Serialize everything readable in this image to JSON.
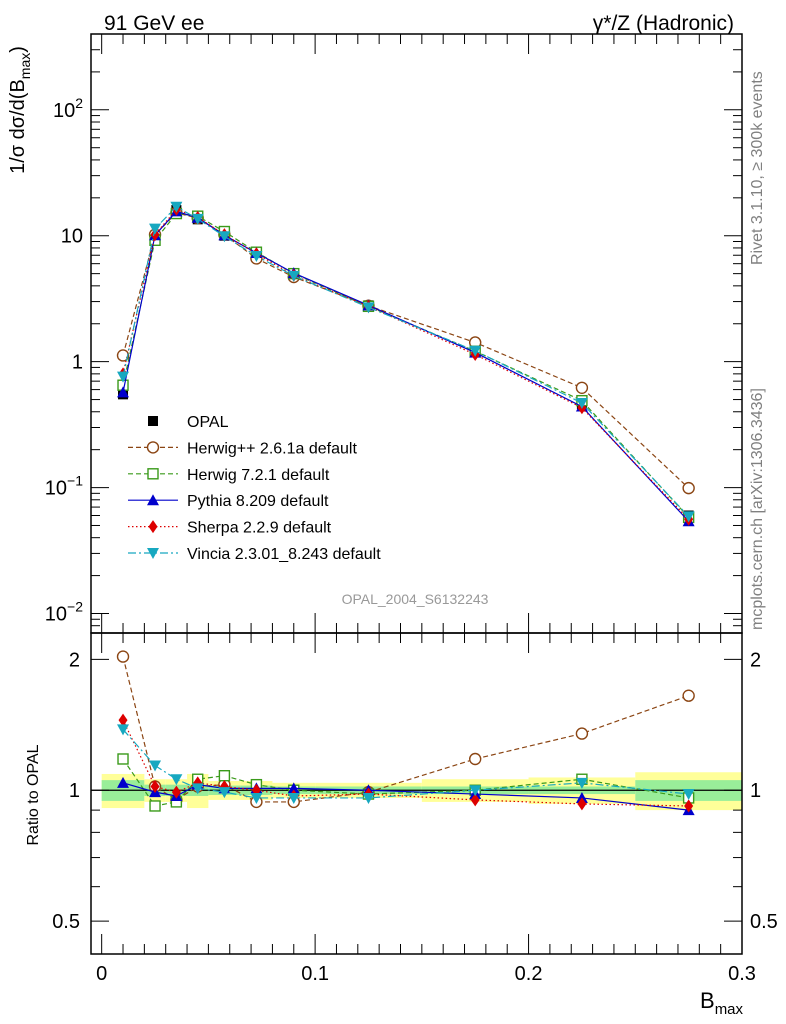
{
  "header": {
    "left_title": "91 GeV ee",
    "right_title": "γ*/Z (Hadronic)",
    "side_label_top": "Rivet 3.1.10, ≥ 300k events",
    "side_label_bottom": "mcplots.cern.ch [arXiv:1306.3436]",
    "analysis_id": "OPAL_2004_S6132243"
  },
  "chart_data": [
    {
      "type": "line",
      "panel": "main",
      "yscale": "log",
      "ylim": [
        0.007,
        400
      ],
      "xlim": [
        -0.005,
        0.3
      ],
      "ylabel": "1/σ dσ/d(B_max)",
      "ytick_labels": [
        "10^-2",
        "10^-1",
        "1",
        "10",
        "10^2"
      ],
      "x": [
        0.01,
        0.025,
        0.035,
        0.045,
        0.0575,
        0.0725,
        0.09,
        0.125,
        0.175,
        0.225,
        0.275
      ],
      "series": [
        {
          "name": "OPAL",
          "key": "opal",
          "color": "#000000",
          "values": [
            0.55,
            10.0,
            16.0,
            13.5,
            10.0,
            7.2,
            5.0,
            2.8,
            1.2,
            0.46,
            0.06
          ]
        },
        {
          "name": "Herwig++ 2.6.1a default",
          "key": "herwigpp",
          "color": "#8B4513",
          "values": [
            1.12,
            10.2,
            15.2,
            13.8,
            10.2,
            6.6,
            4.7,
            2.78,
            1.42,
            0.62,
            0.099
          ]
        },
        {
          "name": "Herwig 7.2.1 default",
          "key": "herwig7",
          "color": "#3a9a1a",
          "values": [
            0.65,
            9.2,
            15.0,
            14.3,
            10.8,
            7.4,
            5.0,
            2.75,
            1.21,
            0.49,
            0.058
          ]
        },
        {
          "name": "Pythia 8.209 default",
          "key": "pythia",
          "color": "#0000cc",
          "values": [
            0.57,
            10.1,
            15.6,
            13.9,
            10.1,
            7.3,
            5.05,
            2.8,
            1.18,
            0.44,
            0.054
          ]
        },
        {
          "name": "Sherpa 2.2.9 default",
          "key": "sherpa",
          "color": "#dd0000",
          "values": [
            0.8,
            10.2,
            16.2,
            14.0,
            10.2,
            7.2,
            4.85,
            2.75,
            1.14,
            0.43,
            0.056
          ]
        },
        {
          "name": "Vincia 2.3.01_8.243 default",
          "key": "vincia",
          "color": "#17a8c0",
          "values": [
            0.76,
            11.4,
            17.0,
            13.6,
            9.9,
            6.9,
            4.8,
            2.7,
            1.22,
            0.47,
            0.059
          ]
        }
      ]
    },
    {
      "type": "line",
      "panel": "ratio",
      "ylabel": "Ratio to OPAL",
      "xlabel": "B_max",
      "ylim": [
        0.42,
        2.3
      ],
      "ytick_labels": [
        "0.5",
        "1",
        "2"
      ],
      "xtick_labels": [
        "0",
        "0.1",
        "0.2",
        "0.3"
      ],
      "x": [
        0.01,
        0.025,
        0.035,
        0.045,
        0.0575,
        0.0725,
        0.09,
        0.125,
        0.175,
        0.225,
        0.275
      ],
      "series": [
        {
          "name": "Herwig++ 2.6.1a default",
          "key": "herwigpp",
          "values": [
            2.03,
            1.02,
            0.95,
            1.02,
            1.03,
            0.94,
            0.94,
            0.99,
            1.18,
            1.35,
            1.65
          ]
        },
        {
          "name": "Herwig 7.2.1 default",
          "key": "herwig7",
          "values": [
            1.18,
            0.92,
            0.94,
            1.06,
            1.08,
            1.03,
            1.0,
            0.98,
            1.0,
            1.06,
            0.96
          ]
        },
        {
          "name": "Pythia 8.209 default",
          "key": "pythia",
          "values": [
            1.04,
            0.99,
            0.97,
            1.03,
            1.01,
            1.01,
            1.01,
            1.0,
            0.98,
            0.96,
            0.9
          ]
        },
        {
          "name": "Sherpa 2.2.9 default",
          "key": "sherpa",
          "values": [
            1.45,
            1.02,
            0.99,
            1.04,
            1.02,
            1.0,
            0.97,
            0.98,
            0.95,
            0.93,
            0.92
          ]
        },
        {
          "name": "Vincia 2.3.01_8.243 default",
          "key": "vincia",
          "values": [
            1.38,
            1.14,
            1.06,
            1.01,
            0.99,
            0.96,
            0.96,
            0.96,
            1.0,
            1.04,
            0.98
          ]
        }
      ],
      "bands": {
        "edges": [
          0.0,
          0.02,
          0.03,
          0.04,
          0.05,
          0.065,
          0.08,
          0.1,
          0.15,
          0.2,
          0.25,
          0.3
        ],
        "inner": [
          0.055,
          0.03,
          0.03,
          0.03,
          0.025,
          0.025,
          0.02,
          0.02,
          0.02,
          0.02,
          0.055
        ],
        "outer": [
          0.09,
          0.06,
          0.06,
          0.09,
          0.05,
          0.05,
          0.04,
          0.04,
          0.06,
          0.07,
          0.1
        ]
      }
    }
  ]
}
